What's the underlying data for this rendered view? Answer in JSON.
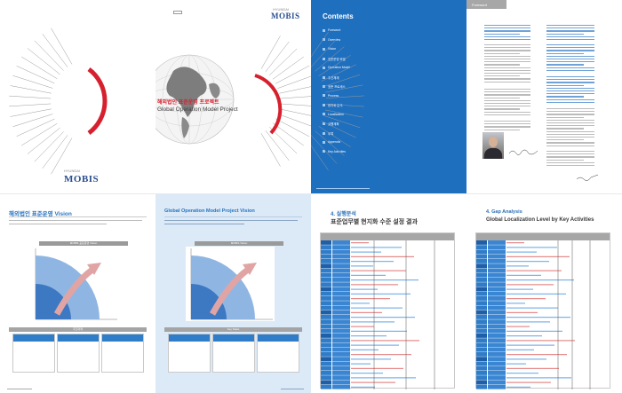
{
  "cover": {
    "project_title_kr": "해외법인 표준운영 프로젝트",
    "project_title_en": "Global Operation Model Project",
    "brand": "MOBIS",
    "brand_sub": "HYUNDAI"
  },
  "contents": {
    "title": "Contents",
    "items": [
      "Foreword",
      "Overview",
      "Vision",
      "표준운영 모델",
      "Operation Model",
      "추진체계",
      "표준 프로세스",
      "Process",
      "현지화 분석",
      "Localization",
      "실행계획",
      "부록",
      "Appendix",
      "Key Activities"
    ]
  },
  "foreword": {
    "tab": "Foreword"
  },
  "vision_kr": {
    "title": "해외법인 표준운영 Vision",
    "bar_top": "MOBIS 표준운영 Vision",
    "bar_low": "추진과제"
  },
  "vision_en": {
    "title": "Global Operation Model Project Vision",
    "bar_top": "MOBIS Vision",
    "bar_low": "Key Tasks"
  },
  "table_kr": {
    "section": "4. 실행분석",
    "title": "표준업무별 현지화 수준 설정 결과"
  },
  "table_en": {
    "section": "4. Gap Analysis",
    "title": "Global Localization Level by Key Activities"
  },
  "colors": {
    "accent_blue": "#2f7cc8",
    "contents_blue": "#1f6fbf",
    "red": "#d6202e",
    "gray": "#a6a6a6"
  }
}
